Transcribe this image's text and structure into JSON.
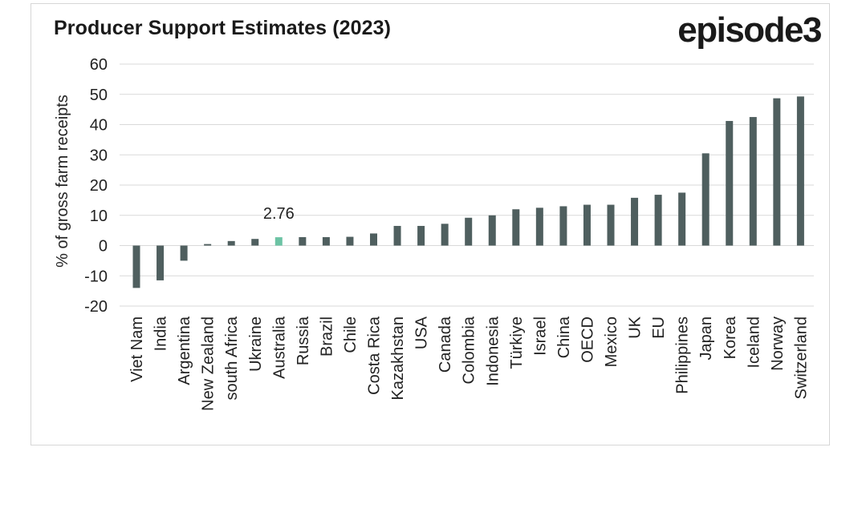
{
  "chart_data": {
    "type": "bar",
    "title": "Producer Support Estimates (2023)",
    "brand": "episode3",
    "ylabel": "% of gross farm receipts",
    "xlabel": "",
    "ylim": [
      -20,
      60
    ],
    "yticks": [
      60,
      50,
      40,
      30,
      20,
      10,
      0,
      -10,
      -20
    ],
    "grid": true,
    "categories": [
      "Viet Nam",
      "India",
      "Argentina",
      "New Zealand",
      "south Africa",
      "Ukraine",
      "Australia",
      "Russia",
      "Brazil",
      "Chile",
      "Costa Rica",
      "Kazakhstan",
      "USA",
      "Canada",
      "Colombia",
      "Indonesia",
      "Türkiye",
      "Israel",
      "China",
      "OECD",
      "Mexico",
      "UK",
      "EU",
      "Philippines",
      "Japan",
      "Korea",
      "Iceland",
      "Norway",
      "Switzerland"
    ],
    "values": [
      -14,
      -11.5,
      -5,
      0.5,
      1.5,
      2.2,
      2.76,
      2.8,
      2.8,
      2.9,
      4,
      6.5,
      6.5,
      7.2,
      9.2,
      10,
      12,
      12.5,
      13,
      13.5,
      13.5,
      15.8,
      16.8,
      17.5,
      30.5,
      41.2,
      42.5,
      48.7,
      49.3
    ],
    "highlight": {
      "category": "Australia",
      "label": "2.76"
    },
    "colors": {
      "bar": "#4f5f5f",
      "highlight": "#6cc3a4",
      "grid": "#d9d9d9",
      "text": "#222222"
    }
  }
}
